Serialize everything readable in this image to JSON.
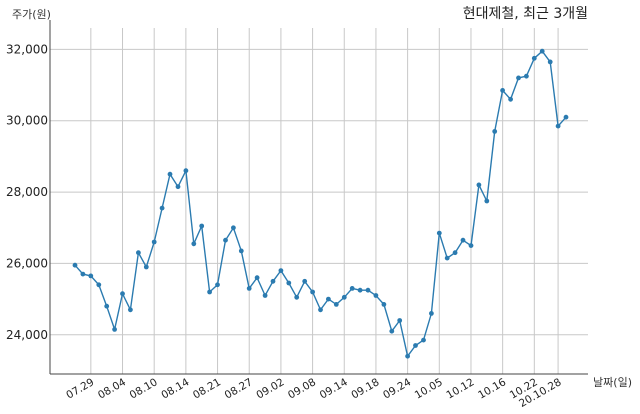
{
  "chart_data": {
    "type": "line",
    "title": "현대제철, 최근 3개월",
    "ylabel": "주가(원)",
    "xlabel": "날짜(일)",
    "ylim": [
      22900,
      32600
    ],
    "yticks": [
      24000,
      26000,
      28000,
      30000,
      32000
    ],
    "ytick_labels": [
      "24,000",
      "26,000",
      "28,000",
      "30,000",
      "32,000"
    ],
    "xtick_labels": [
      "07.29",
      "08.04",
      "08.10",
      "08.14",
      "08.21",
      "08.27",
      "09.02",
      "09.08",
      "09.14",
      "09.18",
      "09.24",
      "10.05",
      "10.12",
      "10.16",
      "10.22",
      "20.10.28"
    ],
    "xtick_index": [
      2,
      6,
      10,
      14,
      18,
      22,
      26,
      30,
      34,
      38,
      42,
      46,
      50,
      54,
      58,
      61
    ],
    "grid": true,
    "series_color": "#2b7bb0",
    "series": [
      {
        "values": [
          25950,
          25700,
          25650,
          25400,
          24800,
          24150,
          25150,
          24700,
          26300,
          25900,
          26600,
          27550,
          28500,
          28150,
          28600,
          26550,
          27050,
          25200,
          25400,
          26650,
          27000,
          26350,
          25300,
          25600,
          25100,
          25500,
          25800,
          25450,
          25050,
          25500,
          25200,
          24700,
          25000,
          24850,
          25050,
          25300,
          25250,
          25250,
          25100,
          24850,
          24100,
          24400,
          23400,
          23700,
          23850,
          24600,
          26850,
          26150,
          26300,
          26650,
          26500,
          28200,
          27750,
          29700,
          30850,
          30600,
          31200,
          31250,
          31750,
          31950,
          31650,
          29850,
          30100
        ]
      }
    ]
  }
}
